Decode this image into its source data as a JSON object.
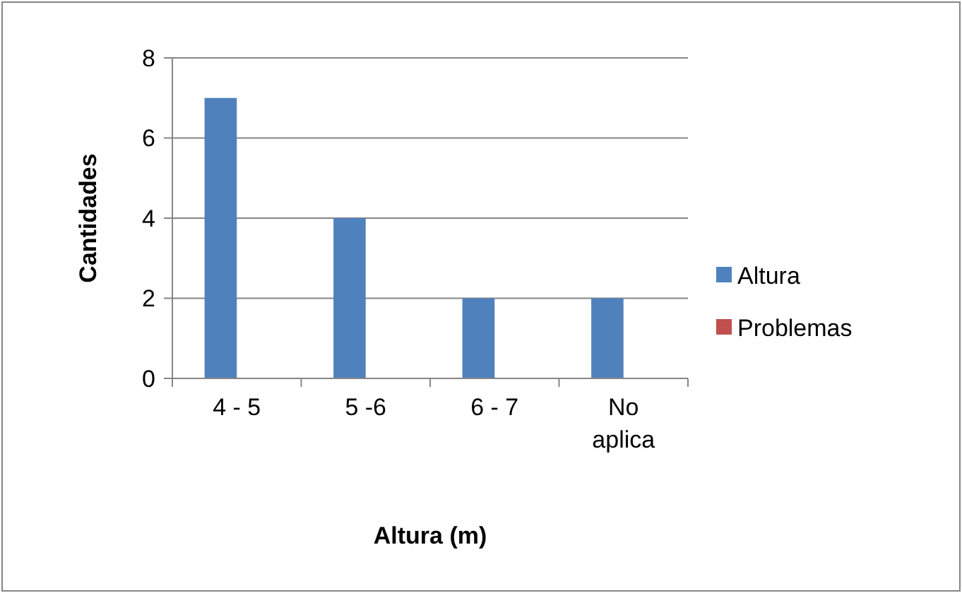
{
  "chart_data": {
    "type": "bar",
    "xlabel": "Altura (m)",
    "ylabel": "Cantidades",
    "categories": [
      "4 - 5",
      "5 -6",
      "6 - 7",
      "No aplica"
    ],
    "series": [
      {
        "name": "Altura",
        "color": "#4f81bd",
        "values": [
          7,
          4,
          2,
          2
        ]
      },
      {
        "name": "Problemas",
        "color": "#c0504d",
        "values": [
          null,
          null,
          null,
          null
        ]
      }
    ],
    "ylim": [
      0,
      8
    ],
    "yticks": [
      0,
      2,
      4,
      6,
      8
    ],
    "grid": "y",
    "legend": "right"
  }
}
